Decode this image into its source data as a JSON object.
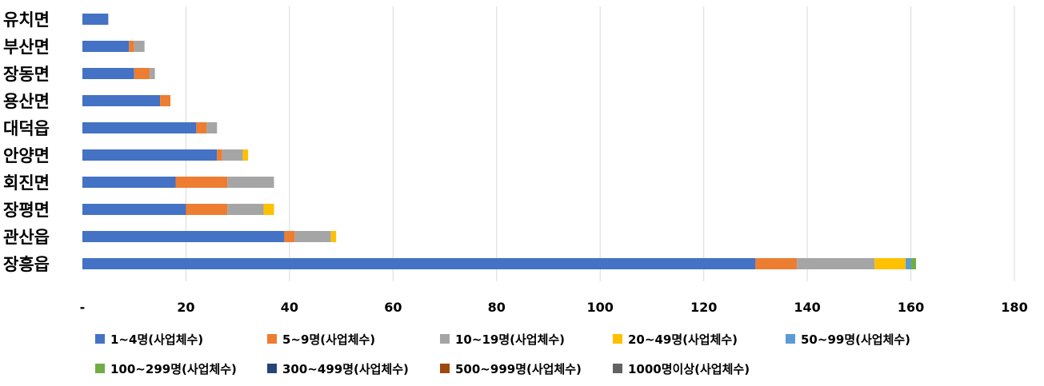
{
  "chart_data": {
    "type": "bar",
    "orientation": "horizontal",
    "stacked": true,
    "title": "",
    "xlabel": "",
    "ylabel": "",
    "xlim": [
      0,
      180
    ],
    "grid": true,
    "legend_position": "bottom",
    "x_ticks": [
      {
        "value": 0,
        "label": "-"
      },
      {
        "value": 20,
        "label": "20"
      },
      {
        "value": 40,
        "label": "40"
      },
      {
        "value": 60,
        "label": "60"
      },
      {
        "value": 80,
        "label": "80"
      },
      {
        "value": 100,
        "label": "100"
      },
      {
        "value": 120,
        "label": "120"
      },
      {
        "value": 140,
        "label": "140"
      },
      {
        "value": 160,
        "label": "160"
      },
      {
        "value": 180,
        "label": "180"
      }
    ],
    "categories": [
      "유치면",
      "부산면",
      "장동면",
      "용산면",
      "대덕읍",
      "안양면",
      "회진면",
      "장평면",
      "관산읍",
      "장흥읍"
    ],
    "series": [
      {
        "name": "1~4명(사업체수)",
        "color": "#4472c4",
        "values": [
          5,
          9,
          10,
          15,
          22,
          26,
          18,
          20,
          39,
          130
        ]
      },
      {
        "name": "5~9명(사업체수)",
        "color": "#ed7d31",
        "values": [
          0,
          1,
          3,
          2,
          2,
          1,
          10,
          8,
          2,
          8
        ]
      },
      {
        "name": "10~19명(사업체수)",
        "color": "#a5a5a5",
        "values": [
          0,
          2,
          1,
          0,
          2,
          4,
          9,
          7,
          7,
          15
        ]
      },
      {
        "name": "20~49명(사업체수)",
        "color": "#ffc000",
        "values": [
          0,
          0,
          0,
          0,
          0,
          1,
          0,
          2,
          1,
          6
        ]
      },
      {
        "name": "50~99명(사업체수)",
        "color": "#5b9bd5",
        "values": [
          0,
          0,
          0,
          0,
          0,
          0,
          0,
          0,
          0,
          1
        ]
      },
      {
        "name": "100~299명(사업체수)",
        "color": "#70ad47",
        "values": [
          0,
          0,
          0,
          0,
          0,
          0,
          0,
          0,
          0,
          1
        ]
      },
      {
        "name": "300~499명(사업체수)",
        "color": "#264478",
        "values": [
          0,
          0,
          0,
          0,
          0,
          0,
          0,
          0,
          0,
          0
        ]
      },
      {
        "name": "500~999명(사업체수)",
        "color": "#9e480e",
        "values": [
          0,
          0,
          0,
          0,
          0,
          0,
          0,
          0,
          0,
          0
        ]
      },
      {
        "name": "1000명이상(사업체수)",
        "color": "#636363",
        "values": [
          0,
          0,
          0,
          0,
          0,
          0,
          0,
          0,
          0,
          0
        ]
      }
    ]
  }
}
